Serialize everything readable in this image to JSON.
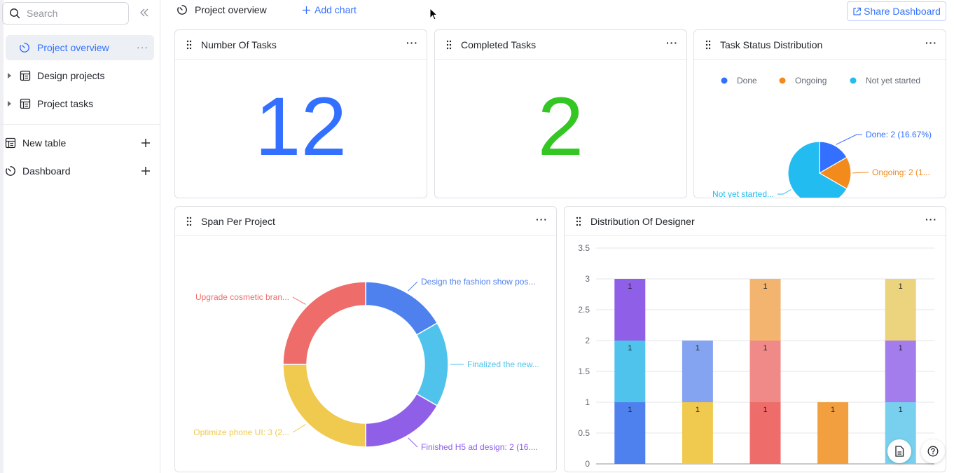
{
  "sidebar": {
    "search_placeholder": "Search",
    "items": [
      {
        "label": "Project overview"
      },
      {
        "label": "Design projects"
      },
      {
        "label": "Project tasks"
      },
      {
        "label": "New table"
      },
      {
        "label": "Dashboard"
      }
    ]
  },
  "topbar": {
    "title": "Project overview",
    "add_chart": "Add chart",
    "share": "Share Dashboard"
  },
  "cards": {
    "tasks": {
      "title": "Number Of Tasks",
      "value": "12",
      "color": "#3370ff"
    },
    "completed": {
      "title": "Completed Tasks",
      "value": "2",
      "color": "#34c724"
    },
    "status": {
      "title": "Task Status Distribution"
    },
    "span": {
      "title": "Span Per Project"
    },
    "designer": {
      "title": "Distribution Of Designer"
    }
  },
  "chart_data": [
    {
      "type": "pie",
      "title": "Task Status Distribution",
      "legend": [
        "Done",
        "Ongoing",
        "Not yet started"
      ],
      "legend_position": "top",
      "slices": [
        {
          "name": "Done",
          "value": 2,
          "label": "Done: 2 (16.67%)",
          "color": "#3370ff"
        },
        {
          "name": "Ongoing",
          "value": 2,
          "label": "Ongoing: 2 (1...",
          "color": "#f28b1c"
        },
        {
          "name": "Not yet started",
          "value": 8,
          "label": "Not yet started...",
          "color": "#22bcf0"
        }
      ]
    },
    {
      "type": "pie",
      "title": "Span Per Project",
      "donut": true,
      "slices": [
        {
          "name": "Design the fashion show pos...",
          "value": 2,
          "label": "Design the fashion show pos...",
          "color": "#4f81ee"
        },
        {
          "name": "Finalized the new...",
          "value": 2,
          "label": "Finalized the new...",
          "color": "#4fc3ec"
        },
        {
          "name": "Finished H5 ad design",
          "value": 2,
          "label": "Finished H5 ad design: 2 (16....",
          "color": "#8f5fe8"
        },
        {
          "name": "Optimize phone UI",
          "value": 3,
          "label": "Optimize phone UI: 3 (2...",
          "color": "#f0c94f"
        },
        {
          "name": "Upgrade cosmetic bran...",
          "value": 3,
          "label": "Upgrade cosmetic bran...",
          "color": "#ee6d6a"
        }
      ]
    },
    {
      "type": "bar",
      "stacked": true,
      "title": "Distribution Of Designer",
      "ylim": [
        0,
        3.5
      ],
      "yticks": [
        "0",
        "0.5",
        "1",
        "1.5",
        "2",
        "2.5",
        "3",
        "3.5"
      ],
      "columns": [
        [
          {
            "value": 1,
            "label": "1",
            "color": "#4f81ee"
          },
          {
            "value": 1,
            "label": "1",
            "color": "#4fc3ec"
          },
          {
            "value": 1,
            "label": "1",
            "color": "#8f5fe8"
          }
        ],
        [
          {
            "value": 1,
            "label": "1",
            "color": "#f0c94f"
          },
          {
            "value": 1,
            "label": "1",
            "color": "#84a4f1"
          }
        ],
        [
          {
            "value": 1,
            "label": "1",
            "color": "#ee6d6a"
          },
          {
            "value": 1,
            "label": "1",
            "color": "#f08a88"
          },
          {
            "value": 1,
            "label": "1",
            "color": "#f2b46e"
          }
        ],
        [
          {
            "value": 1,
            "label": "1",
            "color": "#f2a03f"
          }
        ],
        [
          {
            "value": 1,
            "label": "1",
            "color": "#79d0ee"
          },
          {
            "value": 1,
            "label": "1",
            "color": "#a47ded"
          },
          {
            "value": 1,
            "label": "1",
            "color": "#ecd37e"
          }
        ]
      ]
    }
  ]
}
